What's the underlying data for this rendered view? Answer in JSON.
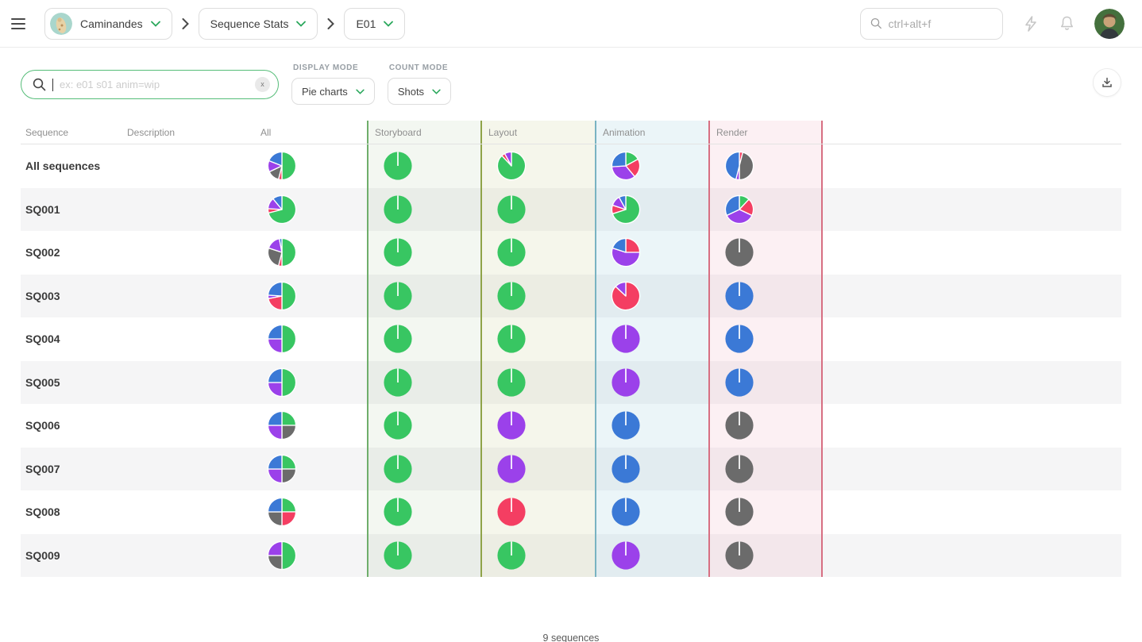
{
  "topbar": {
    "project": "Caminandes",
    "page": "Sequence Stats",
    "episode": "E01",
    "search_placeholder": "ctrl+alt+f"
  },
  "filters": {
    "search_placeholder": "ex: e01 s01 anim=wip",
    "clear_label": "x",
    "display_mode_label": "DISPLAY MODE",
    "display_mode_value": "Pie charts",
    "count_mode_label": "COUNT MODE",
    "count_mode_value": "Shots"
  },
  "table": {
    "columns": [
      {
        "key": "sequence",
        "label": "Sequence"
      },
      {
        "key": "description",
        "label": "Description"
      },
      {
        "key": "all",
        "label": "All"
      },
      {
        "key": "storyboard",
        "label": "Storyboard"
      },
      {
        "key": "layout",
        "label": "Layout"
      },
      {
        "key": "animation",
        "label": "Animation"
      },
      {
        "key": "render",
        "label": "Render"
      }
    ]
  },
  "colors": {
    "accent_green": "#56bd79",
    "column_borders": {
      "storyboard": "#6fae6b",
      "layout": "#8fa348",
      "animation": "#79b3c2",
      "render": "#d76f82"
    }
  },
  "chart_data": {
    "type": "pie",
    "description": "Grid of pie charts showing shot status breakdown (percent) per sequence and per department",
    "status_colors": {
      "done": "#38c662",
      "retake": "#f43e62",
      "todo": "#6b6b6b",
      "wfa": "#9b41ea",
      "wip": "#3b79d6"
    },
    "status_order": [
      "done",
      "retake",
      "todo",
      "wfa",
      "wip"
    ],
    "columns": [
      "all",
      "storyboard",
      "layout",
      "animation",
      "render"
    ],
    "rows": [
      {
        "sequence": "All sequences",
        "pies": {
          "all": [
            {
              "status": "done",
              "value": 50
            },
            {
              "status": "retake",
              "value": 4
            },
            {
              "status": "todo",
              "value": 14
            },
            {
              "status": "wfa",
              "value": 13
            },
            {
              "status": "wip",
              "value": 19
            }
          ],
          "storyboard": [
            {
              "status": "done",
              "value": 100
            }
          ],
          "layout": [
            {
              "status": "done",
              "value": 88
            },
            {
              "status": "retake",
              "value": 4
            },
            {
              "status": "wfa",
              "value": 8
            }
          ],
          "animation": [
            {
              "status": "done",
              "value": 17
            },
            {
              "status": "retake",
              "value": 22
            },
            {
              "status": "wfa",
              "value": 35
            },
            {
              "status": "wip",
              "value": 26
            }
          ],
          "render": [
            {
              "status": "retake",
              "value": 4
            },
            {
              "status": "todo",
              "value": 46
            },
            {
              "status": "wfa",
              "value": 4
            },
            {
              "status": "wip",
              "value": 46
            }
          ]
        }
      },
      {
        "sequence": "SQ001",
        "pies": {
          "all": [
            {
              "status": "done",
              "value": 71
            },
            {
              "status": "retake",
              "value": 5
            },
            {
              "status": "wfa",
              "value": 13
            },
            {
              "status": "wip",
              "value": 11
            }
          ],
          "storyboard": [
            {
              "status": "done",
              "value": 100
            }
          ],
          "layout": [
            {
              "status": "done",
              "value": 100
            }
          ],
          "animation": [
            {
              "status": "done",
              "value": 70
            },
            {
              "status": "retake",
              "value": 10
            },
            {
              "status": "wfa",
              "value": 12
            },
            {
              "status": "wip",
              "value": 8
            }
          ],
          "render": [
            {
              "status": "done",
              "value": 12
            },
            {
              "status": "retake",
              "value": 20
            },
            {
              "status": "wfa",
              "value": 36
            },
            {
              "status": "wip",
              "value": 32
            }
          ]
        }
      },
      {
        "sequence": "SQ002",
        "pies": {
          "all": [
            {
              "status": "done",
              "value": 50
            },
            {
              "status": "retake",
              "value": 4
            },
            {
              "status": "todo",
              "value": 26
            },
            {
              "status": "wfa",
              "value": 17
            },
            {
              "status": "wip",
              "value": 3
            }
          ],
          "storyboard": [
            {
              "status": "done",
              "value": 100
            }
          ],
          "layout": [
            {
              "status": "done",
              "value": 100
            }
          ],
          "animation": [
            {
              "status": "retake",
              "value": 25
            },
            {
              "status": "wfa",
              "value": 55
            },
            {
              "status": "wip",
              "value": 20
            }
          ],
          "render": [
            {
              "status": "todo",
              "value": 100
            }
          ]
        }
      },
      {
        "sequence": "SQ003",
        "pies": {
          "all": [
            {
              "status": "done",
              "value": 50
            },
            {
              "status": "retake",
              "value": 22
            },
            {
              "status": "wfa",
              "value": 4
            },
            {
              "status": "wip",
              "value": 24
            }
          ],
          "storyboard": [
            {
              "status": "done",
              "value": 100
            }
          ],
          "layout": [
            {
              "status": "done",
              "value": 100
            }
          ],
          "animation": [
            {
              "status": "retake",
              "value": 87
            },
            {
              "status": "wfa",
              "value": 13
            }
          ],
          "render": [
            {
              "status": "wip",
              "value": 100
            }
          ]
        }
      },
      {
        "sequence": "SQ004",
        "pies": {
          "all": [
            {
              "status": "done",
              "value": 50
            },
            {
              "status": "wfa",
              "value": 25
            },
            {
              "status": "wip",
              "value": 25
            }
          ],
          "storyboard": [
            {
              "status": "done",
              "value": 100
            }
          ],
          "layout": [
            {
              "status": "done",
              "value": 100
            }
          ],
          "animation": [
            {
              "status": "wfa",
              "value": 100
            }
          ],
          "render": [
            {
              "status": "wip",
              "value": 100
            }
          ]
        }
      },
      {
        "sequence": "SQ005",
        "pies": {
          "all": [
            {
              "status": "done",
              "value": 50
            },
            {
              "status": "wfa",
              "value": 25
            },
            {
              "status": "wip",
              "value": 25
            }
          ],
          "storyboard": [
            {
              "status": "done",
              "value": 100
            }
          ],
          "layout": [
            {
              "status": "done",
              "value": 100
            }
          ],
          "animation": [
            {
              "status": "wfa",
              "value": 100
            }
          ],
          "render": [
            {
              "status": "wip",
              "value": 100
            }
          ]
        }
      },
      {
        "sequence": "SQ006",
        "pies": {
          "all": [
            {
              "status": "done",
              "value": 25
            },
            {
              "status": "todo",
              "value": 25
            },
            {
              "status": "wfa",
              "value": 25
            },
            {
              "status": "wip",
              "value": 25
            }
          ],
          "storyboard": [
            {
              "status": "done",
              "value": 100
            }
          ],
          "layout": [
            {
              "status": "wfa",
              "value": 100
            }
          ],
          "animation": [
            {
              "status": "wip",
              "value": 100
            }
          ],
          "render": [
            {
              "status": "todo",
              "value": 100
            }
          ]
        }
      },
      {
        "sequence": "SQ007",
        "pies": {
          "all": [
            {
              "status": "done",
              "value": 25
            },
            {
              "status": "todo",
              "value": 25
            },
            {
              "status": "wfa",
              "value": 25
            },
            {
              "status": "wip",
              "value": 25
            }
          ],
          "storyboard": [
            {
              "status": "done",
              "value": 100
            }
          ],
          "layout": [
            {
              "status": "wfa",
              "value": 100
            }
          ],
          "animation": [
            {
              "status": "wip",
              "value": 100
            }
          ],
          "render": [
            {
              "status": "todo",
              "value": 100
            }
          ]
        }
      },
      {
        "sequence": "SQ008",
        "pies": {
          "all": [
            {
              "status": "done",
              "value": 25
            },
            {
              "status": "retake",
              "value": 25
            },
            {
              "status": "todo",
              "value": 25
            },
            {
              "status": "wip",
              "value": 25
            }
          ],
          "storyboard": [
            {
              "status": "done",
              "value": 100
            }
          ],
          "layout": [
            {
              "status": "retake",
              "value": 100
            }
          ],
          "animation": [
            {
              "status": "wip",
              "value": 100
            }
          ],
          "render": [
            {
              "status": "todo",
              "value": 100
            }
          ]
        }
      },
      {
        "sequence": "SQ009",
        "pies": {
          "all": [
            {
              "status": "done",
              "value": 50
            },
            {
              "status": "todo",
              "value": 25
            },
            {
              "status": "wfa",
              "value": 25
            }
          ],
          "storyboard": [
            {
              "status": "done",
              "value": 100
            }
          ],
          "layout": [
            {
              "status": "done",
              "value": 100
            }
          ],
          "animation": [
            {
              "status": "wfa",
              "value": 100
            }
          ],
          "render": [
            {
              "status": "todo",
              "value": 100
            }
          ]
        }
      }
    ]
  },
  "footer": {
    "count": "9 sequences"
  }
}
